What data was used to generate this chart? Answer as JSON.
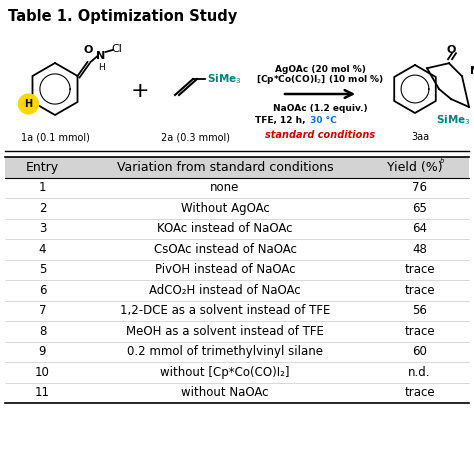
{
  "title": "Table 1. Optimization Study",
  "title_fontsize": 10.5,
  "header": [
    "Entry",
    "Variation from standard conditions",
    "Yield (%)"
  ],
  "rows": [
    [
      "1",
      "none",
      "76"
    ],
    [
      "2",
      "Without AgOAc",
      "65"
    ],
    [
      "3",
      "KOAc instead of NaOAc",
      "64"
    ],
    [
      "4",
      "CsOAc instead of NaOAc",
      "48"
    ],
    [
      "5",
      "PivOH instead of NaOAc",
      "trace"
    ],
    [
      "6",
      "AdCO₂H instead of NaOAc",
      "trace"
    ],
    [
      "7",
      "1,2-DCE as a solvent instead of TFE",
      "56"
    ],
    [
      "8",
      "MeOH as a solvent instead of TFE",
      "trace"
    ],
    [
      "9",
      "0.2 mmol of trimethylvinyl silane",
      "60"
    ],
    [
      "10",
      "without [Cp*Co(CO)I₂]",
      "n.d."
    ],
    [
      "11",
      "without NaOAc",
      "trace"
    ]
  ],
  "header_bg": "#d3d3d3",
  "bg_color": "#ffffff",
  "text_color": "#000000",
  "font_size": 8.5,
  "header_font_size": 9.0,
  "teal_color": "#008080",
  "blue_color": "#1a6abf",
  "red_color": "#cc0000",
  "green_color": "#00a651",
  "yellow_color": "#FFD700"
}
